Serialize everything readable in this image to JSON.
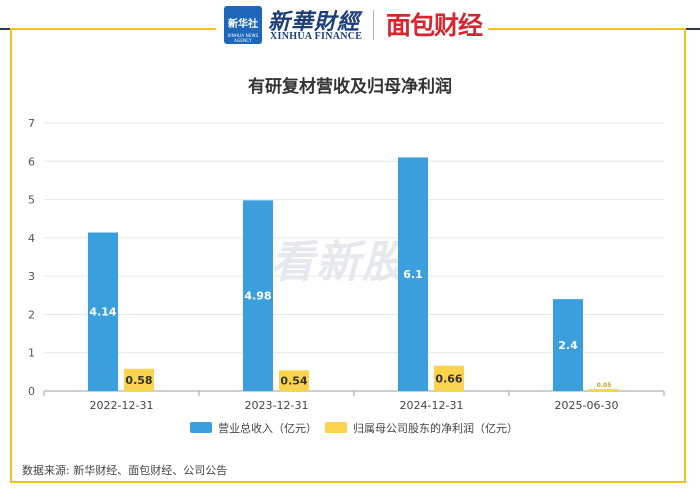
{
  "header": {
    "logo_box_cn": "新华社",
    "logo_box_en": "XINHUA NEWS AGENCY",
    "brand_cn": "新華財經",
    "brand_en": "XINHUA FINANCE",
    "brand2": "面包财经"
  },
  "watermark": "看新股",
  "source": "数据来源: 新华财经、面包财经、公司公告",
  "colors": {
    "revenue": "#3a9fdc",
    "profit": "#fcd34d",
    "frame": "#f2c418"
  },
  "chart_data": {
    "type": "bar",
    "title": "有研复材营收及归母净利润",
    "categories": [
      "2022-12-31",
      "2023-12-31",
      "2024-12-31",
      "2025-06-30"
    ],
    "ylim": [
      0,
      7
    ],
    "yticks": [
      0,
      1,
      2,
      3,
      4,
      5,
      6,
      7
    ],
    "grid": true,
    "legend_position": "bottom",
    "series": [
      {
        "name": "营业总收入（亿元）",
        "values": [
          4.14,
          4.98,
          6.1,
          2.4
        ],
        "labels": [
          "4.14",
          "4.98",
          "6.1",
          "2.4"
        ]
      },
      {
        "name": "归属母公司股东的净利润（亿元）",
        "values": [
          0.58,
          0.54,
          0.66,
          0.05
        ],
        "labels": [
          "0.58",
          "0.54",
          "0.66",
          "0.05"
        ]
      }
    ]
  }
}
